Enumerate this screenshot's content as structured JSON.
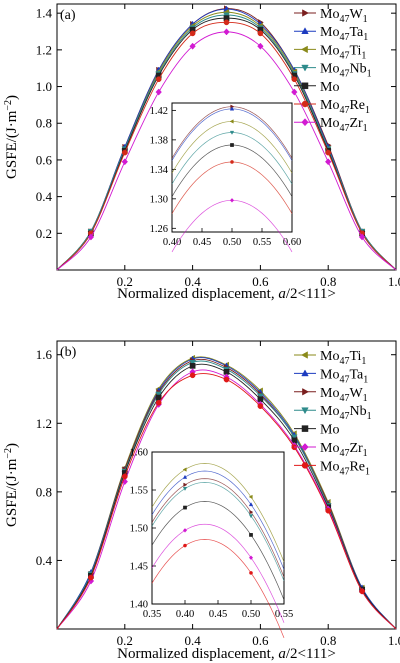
{
  "chart_data": [
    {
      "type": "line",
      "panel_label": "(a)",
      "xlabel_pre": "Normalized displacement, ",
      "xlabel_var": "a",
      "xlabel_post": "/2<111>",
      "ylabel_main": "GSFE/(J·m",
      "ylabel_sup": "−2",
      "ylabel_close": ")",
      "xlim": [
        0,
        1.0
      ],
      "ylim": [
        0,
        1.45
      ],
      "xticks": [
        "0.2",
        "0.4",
        "0.6",
        "0.8",
        "1.0"
      ],
      "yticks": [
        "0.2",
        "0.4",
        "0.6",
        "0.8",
        "1.0",
        "1.2",
        "1.4"
      ],
      "xtick_values": [
        0.2,
        0.4,
        0.6,
        0.8,
        1.0
      ],
      "ytick_values": [
        0.2,
        0.4,
        0.6,
        0.8,
        1.0,
        1.2,
        1.4
      ],
      "legend_position": "top-right",
      "x": [
        0,
        0.1,
        0.2,
        0.3,
        0.4,
        0.5,
        0.6,
        0.7,
        0.8,
        0.9,
        1.0
      ],
      "series": [
        {
          "name": "Mo47W1",
          "base": "Mo",
          "sub": "47",
          "el": "W",
          "el_sub": "1",
          "color": "#7a1f1f",
          "marker": "triangle-right",
          "peak": 1.425,
          "values": [
            0,
            0.21,
            0.67,
            1.09,
            1.34,
            1.425,
            1.35,
            1.09,
            0.68,
            0.21,
            0
          ]
        },
        {
          "name": "Mo47Ta1",
          "base": "Mo",
          "sub": "47",
          "el": "Ta",
          "el_sub": "1",
          "color": "#1c3bbf",
          "marker": "triangle-up",
          "peak": 1.422,
          "values": [
            0,
            0.21,
            0.67,
            1.09,
            1.34,
            1.422,
            1.34,
            1.09,
            0.67,
            0.21,
            0
          ]
        },
        {
          "name": "Mo47Ti1",
          "base": "Mo",
          "sub": "47",
          "el": "Ti",
          "el_sub": "1",
          "color": "#8a8a1a",
          "marker": "triangle-left",
          "peak": 1.405,
          "values": [
            0,
            0.21,
            0.66,
            1.08,
            1.33,
            1.405,
            1.33,
            1.08,
            0.66,
            0.21,
            0
          ]
        },
        {
          "name": "Mo47Nb1",
          "base": "Mo",
          "sub": "47",
          "el": "Nb",
          "el_sub": "1",
          "color": "#2e8b8b",
          "marker": "triangle-down",
          "peak": 1.39,
          "values": [
            0,
            0.21,
            0.66,
            1.07,
            1.32,
            1.39,
            1.32,
            1.07,
            0.66,
            0.21,
            0
          ]
        },
        {
          "name": "Mo",
          "base": "Mo",
          "sub": "",
          "el": "",
          "el_sub": "",
          "color": "#222222",
          "marker": "square",
          "peak": 1.373,
          "values": [
            0,
            0.2,
            0.65,
            1.06,
            1.31,
            1.373,
            1.31,
            1.06,
            0.65,
            0.2,
            0
          ]
        },
        {
          "name": "Mo47Re1",
          "base": "Mo",
          "sub": "47",
          "el": "Re",
          "el_sub": "1",
          "color": "#d42a1a",
          "marker": "circle",
          "peak": 1.35,
          "values": [
            0,
            0.2,
            0.64,
            1.04,
            1.29,
            1.35,
            1.29,
            1.04,
            0.64,
            0.2,
            0
          ]
        },
        {
          "name": "Mo47Zr1",
          "base": "Mo",
          "sub": "47",
          "el": "Zr",
          "el_sub": "1",
          "color": "#d21ad2",
          "marker": "diamond",
          "peak": 1.298,
          "values": [
            0,
            0.18,
            0.59,
            0.97,
            1.22,
            1.298,
            1.22,
            0.97,
            0.59,
            0.18,
            0
          ]
        }
      ],
      "inset": {
        "xlim": [
          0.4,
          0.6
        ],
        "ylim": [
          1.255,
          1.43
        ],
        "xticks": [
          "0.40",
          "0.45",
          "0.50",
          "0.55",
          "0.60"
        ],
        "yticks": [
          "1.26",
          "1.30",
          "1.34",
          "1.38",
          "1.42"
        ],
        "xtick_values": [
          0.4,
          0.45,
          0.5,
          0.55,
          0.6
        ],
        "ytick_values": [
          1.26,
          1.3,
          1.34,
          1.38,
          1.42
        ],
        "peak_x": 0.5,
        "curvature": 7
      }
    },
    {
      "type": "line",
      "panel_label": "(b)",
      "xlabel_pre": "Normalized displacement, ",
      "xlabel_var": "a",
      "xlabel_post": "/2<111>",
      "ylabel_main": "GSFE/(J·m",
      "ylabel_sup": "−2",
      "ylabel_close": ")",
      "xlim": [
        0,
        1.0
      ],
      "ylim": [
        0,
        1.68
      ],
      "xticks": [
        "0.2",
        "0.4",
        "0.6",
        "0.8",
        "1.0"
      ],
      "yticks": [
        "0.4",
        "0.8",
        "1.2",
        "1.6"
      ],
      "xtick_values": [
        0.2,
        0.4,
        0.6,
        0.8,
        1.0
      ],
      "ytick_values": [
        0.4,
        0.8,
        1.2,
        1.6
      ],
      "legend_position": "top-right",
      "x": [
        0,
        0.1,
        0.2,
        0.3,
        0.4,
        0.5,
        0.6,
        0.7,
        0.8,
        0.9,
        1.0
      ],
      "series": [
        {
          "name": "Mo47Ti1",
          "base": "Mo",
          "sub": "47",
          "el": "Ti",
          "el_sub": "1",
          "color": "#8a8a1a",
          "marker": "triangle-left",
          "peak": 1.585,
          "values": [
            0,
            0.33,
            0.94,
            1.4,
            1.58,
            1.54,
            1.39,
            1.14,
            0.74,
            0.24,
            0
          ]
        },
        {
          "name": "Mo47Ta1",
          "base": "Mo",
          "sub": "47",
          "el": "Ta",
          "el_sub": "1",
          "color": "#1c3bbf",
          "marker": "triangle-up",
          "peak": 1.575,
          "values": [
            0,
            0.33,
            0.93,
            1.39,
            1.575,
            1.535,
            1.38,
            1.13,
            0.73,
            0.24,
            0
          ]
        },
        {
          "name": "Mo47W1",
          "base": "Mo",
          "sub": "47",
          "el": "W",
          "el_sub": "1",
          "color": "#7a1f1f",
          "marker": "triangle-right",
          "peak": 1.565,
          "values": [
            0,
            0.32,
            0.93,
            1.38,
            1.565,
            1.525,
            1.37,
            1.12,
            0.73,
            0.23,
            0
          ]
        },
        {
          "name": "Mo47Nb1",
          "base": "Mo",
          "sub": "47",
          "el": "Nb",
          "el_sub": "1",
          "color": "#2e8b8b",
          "marker": "triangle-down",
          "peak": 1.56,
          "values": [
            0,
            0.32,
            0.92,
            1.37,
            1.555,
            1.515,
            1.36,
            1.12,
            0.72,
            0.23,
            0
          ]
        },
        {
          "name": "Mo",
          "base": "Mo",
          "sub": "",
          "el": "",
          "el_sub": "",
          "color": "#222222",
          "marker": "square",
          "peak": 1.535,
          "values": [
            0,
            0.31,
            0.91,
            1.35,
            1.535,
            1.5,
            1.34,
            1.1,
            0.71,
            0.23,
            0
          ]
        },
        {
          "name": "Mo47Zr1",
          "base": "Mo",
          "sub": "47",
          "el": "Zr",
          "el_sub": "1",
          "color": "#d21ad2",
          "marker": "diamond",
          "peak": 1.505,
          "values": [
            0,
            0.28,
            0.86,
            1.31,
            1.5,
            1.47,
            1.31,
            1.07,
            0.7,
            0.22,
            0
          ]
        },
        {
          "name": "Mo47Re1",
          "base": "Mo",
          "sub": "47",
          "el": "Re",
          "el_sub": "1",
          "color": "#e01818",
          "marker": "circle",
          "peak": 1.485,
          "values": [
            0,
            0.3,
            0.89,
            1.32,
            1.48,
            1.455,
            1.3,
            1.06,
            0.69,
            0.22,
            0
          ]
        }
      ],
      "inset": {
        "xlim": [
          0.35,
          0.55
        ],
        "ylim": [
          1.4,
          1.6
        ],
        "xticks": [
          "0.35",
          "0.40",
          "0.45",
          "0.50",
          "0.55"
        ],
        "yticks": [
          "1.40",
          "1.45",
          "1.50",
          "1.55",
          "1.60"
        ],
        "xtick_values": [
          0.35,
          0.4,
          0.45,
          0.5,
          0.55
        ],
        "ytick_values": [
          1.4,
          1.45,
          1.5,
          1.55,
          1.6
        ],
        "peak_x": 0.43,
        "curvature": 9
      }
    }
  ]
}
